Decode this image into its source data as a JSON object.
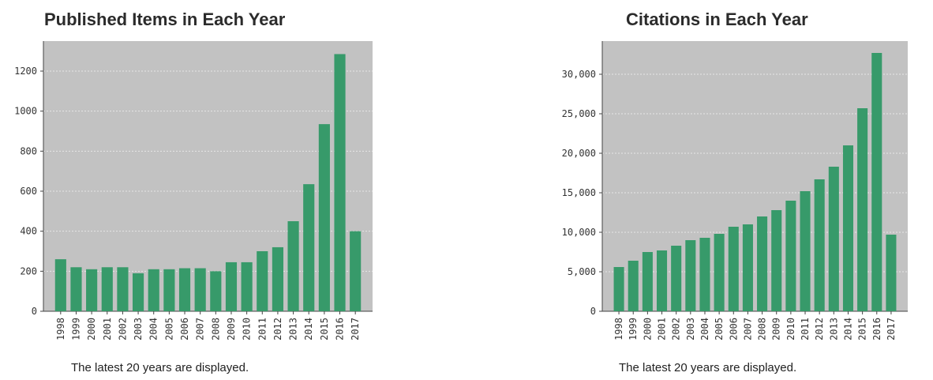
{
  "footnote": "The latest 20 years are displayed.",
  "chart_data": [
    {
      "type": "bar",
      "title": "Published Items in Each Year",
      "xlabel": "",
      "ylabel": "",
      "categories": [
        "1998",
        "1999",
        "2000",
        "2001",
        "2002",
        "2003",
        "2004",
        "2005",
        "2006",
        "2007",
        "2008",
        "2009",
        "2010",
        "2011",
        "2012",
        "2013",
        "2014",
        "2015",
        "2016",
        "2017"
      ],
      "values": [
        260,
        220,
        210,
        220,
        220,
        190,
        210,
        210,
        215,
        215,
        200,
        245,
        245,
        300,
        320,
        450,
        635,
        935,
        1285,
        400
      ],
      "yticks": [
        0,
        200,
        400,
        600,
        800,
        1000,
        1200
      ],
      "ytick_labels": [
        "0",
        "200",
        "400",
        "600",
        "800",
        "1000",
        "1200"
      ],
      "ylim": [
        0,
        1350
      ],
      "grid": true,
      "colors": {
        "bar": "#379a6a",
        "plot_bg": "#c2c2c2",
        "grid": "#e6e6e6"
      }
    },
    {
      "type": "bar",
      "title": "Citations in Each Year",
      "xlabel": "",
      "ylabel": "",
      "categories": [
        "1998",
        "1999",
        "2000",
        "2001",
        "2002",
        "2003",
        "2004",
        "2005",
        "2006",
        "2007",
        "2008",
        "2009",
        "2010",
        "2011",
        "2012",
        "2013",
        "2014",
        "2015",
        "2016",
        "2017"
      ],
      "values": [
        5600,
        6400,
        7500,
        7700,
        8300,
        9000,
        9300,
        9800,
        10700,
        11000,
        12000,
        12800,
        14000,
        15200,
        16700,
        18300,
        21000,
        25700,
        32700,
        9700
      ],
      "yticks": [
        0,
        5000,
        10000,
        15000,
        20000,
        25000,
        30000
      ],
      "ytick_labels": [
        "0",
        "5,000",
        "10,000",
        "15,000",
        "20,000",
        "25,000",
        "30,000"
      ],
      "ylim": [
        0,
        34200
      ],
      "grid": true,
      "colors": {
        "bar": "#379a6a",
        "plot_bg": "#c2c2c2",
        "grid": "#e6e6e6"
      }
    }
  ]
}
